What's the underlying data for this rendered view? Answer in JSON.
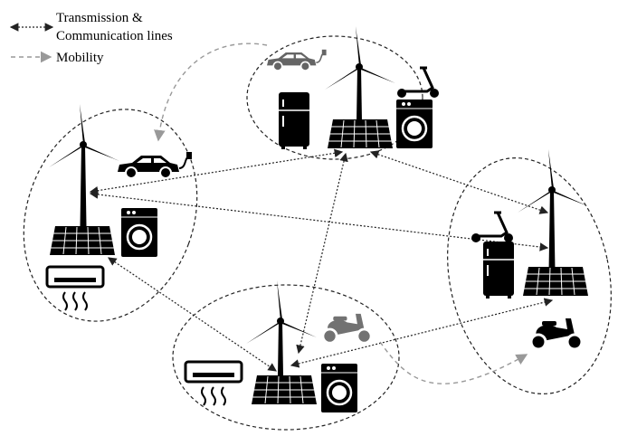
{
  "legend": {
    "items": [
      {
        "lines": [
          "Transmission &",
          "Communication lines"
        ]
      },
      {
        "lines": [
          "Mobility"
        ]
      }
    ]
  }
}
